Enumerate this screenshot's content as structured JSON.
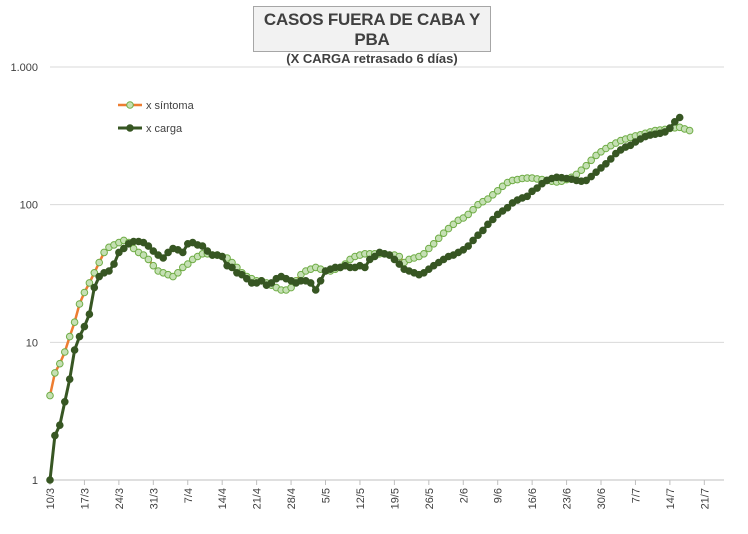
{
  "chart_data": {
    "type": "line",
    "title": "CASOS FUERA DE CABA Y PBA",
    "subtitle": "(X CARGA retrasado 6 días)",
    "yscale": "log",
    "ylim": [
      1,
      1000
    ],
    "y_ticks": [
      {
        "value": 1,
        "label": "1"
      },
      {
        "value": 10,
        "label": "10"
      },
      {
        "value": 100,
        "label": "100"
      },
      {
        "value": 1000,
        "label": "1.000"
      }
    ],
    "x_ticks": [
      "10/3",
      "17/3",
      "24/3",
      "31/3",
      "7/4",
      "14/4",
      "21/4",
      "28/4",
      "5/5",
      "12/5",
      "19/5",
      "26/5",
      "2/6",
      "9/6",
      "16/6",
      "23/6",
      "30/6",
      "7/7",
      "14/7",
      "21/7"
    ],
    "x_start": "10/3",
    "x_days": 137,
    "legend_position": "top-left",
    "series": [
      {
        "name": "x síntoma",
        "line_color": "#ed7d31",
        "marker_fill": "#c5e0b4",
        "marker_stroke": "#70ad47",
        "values": [
          4.1,
          6,
          7,
          8.5,
          11,
          14,
          19,
          23,
          27,
          32,
          38,
          45,
          49,
          51,
          53,
          55,
          53,
          48,
          45,
          43,
          40,
          36,
          33,
          32,
          31,
          30,
          32,
          35,
          37,
          40,
          42,
          44,
          44,
          43,
          43,
          42,
          41,
          38,
          35,
          32,
          30,
          29,
          28,
          28,
          27,
          26,
          25,
          24,
          24,
          25,
          28,
          31,
          33,
          34,
          35,
          34,
          33,
          33,
          34,
          35,
          37,
          40,
          42,
          43,
          44,
          44,
          44,
          44,
          44,
          43,
          43,
          42,
          38,
          40,
          41,
          42,
          44,
          48,
          52,
          57,
          62,
          67,
          72,
          77,
          80,
          85,
          92,
          100,
          105,
          110,
          118,
          126,
          136,
          145,
          150,
          152,
          155,
          156,
          156,
          154,
          152,
          150,
          148,
          146,
          148,
          152,
          158,
          166,
          178,
          192,
          210,
          228,
          242,
          256,
          268,
          280,
          292,
          300,
          308,
          316,
          322,
          330,
          338,
          345,
          348,
          352,
          358,
          362,
          365,
          355,
          345
        ]
      },
      {
        "name": "x carga",
        "line_color": "#375623",
        "marker_fill": "#375623",
        "marker_stroke": "#375623",
        "values": [
          1,
          2.1,
          2.5,
          3.7,
          5.4,
          8.8,
          11,
          13,
          16,
          25,
          30,
          32,
          33,
          37,
          45,
          48,
          52,
          54,
          54,
          53,
          50,
          46,
          43,
          41,
          45,
          48,
          47,
          45,
          52,
          53,
          51,
          50,
          46,
          43,
          43,
          42,
          36,
          35,
          32,
          31,
          29,
          27,
          27,
          28,
          26,
          27,
          29,
          30,
          29,
          28,
          27,
          28,
          28,
          27,
          24,
          28,
          33,
          34,
          35,
          35,
          36,
          35,
          35,
          36,
          35,
          40,
          42,
          45,
          44,
          43,
          40,
          37,
          34,
          33,
          32,
          31,
          32,
          34,
          36,
          38,
          40,
          42,
          43,
          45,
          47,
          50,
          55,
          60,
          65,
          72,
          78,
          85,
          90,
          95,
          103,
          108,
          112,
          115,
          125,
          132,
          142,
          150,
          155,
          158,
          157,
          155,
          153,
          150,
          148,
          150,
          160,
          172,
          185,
          198,
          215,
          235,
          250,
          262,
          270,
          285,
          300,
          312,
          320,
          325,
          330,
          338,
          360,
          400,
          430
        ]
      }
    ]
  }
}
